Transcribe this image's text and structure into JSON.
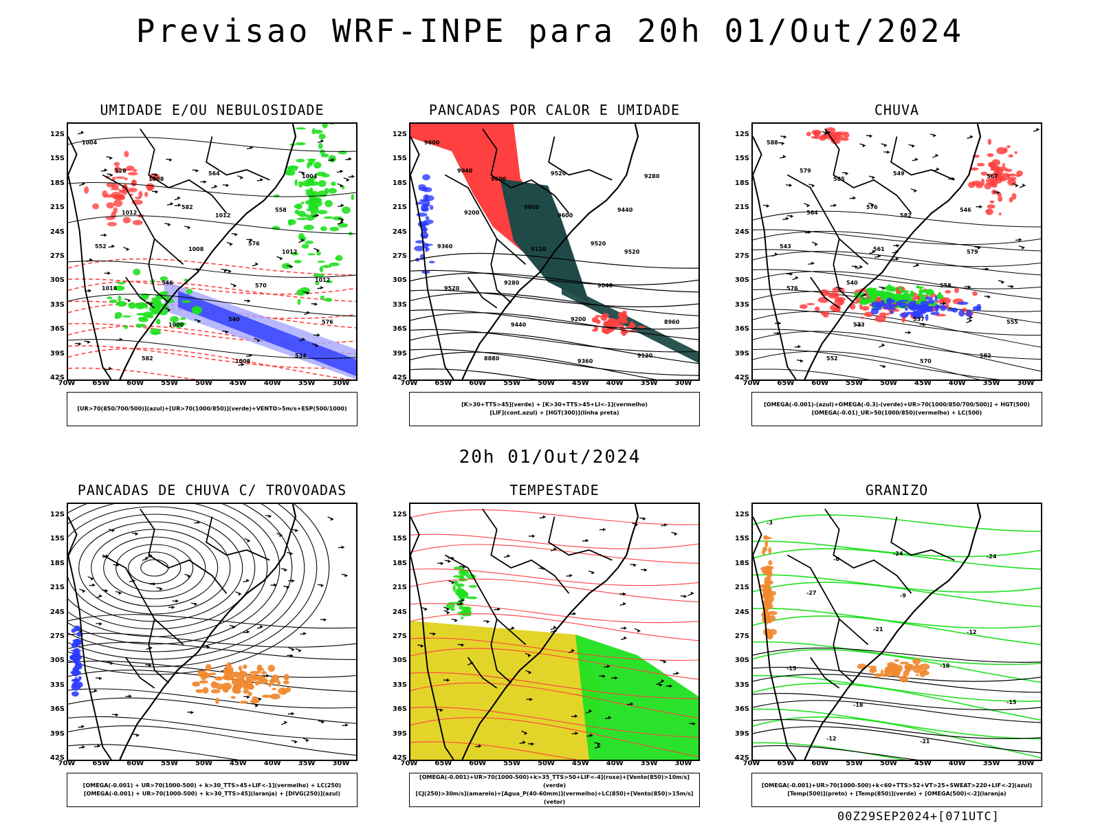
{
  "title": "Previsao WRF-INPE  para 20h 01/Out/2024",
  "mid_date": "20h 01/Out/2024",
  "footer": "00Z29SEP2024+[071UTC]",
  "lat_labels": [
    "12S",
    "15S",
    "18S",
    "21S",
    "24S",
    "27S",
    "30S",
    "33S",
    "36S",
    "39S",
    "42S"
  ],
  "lon_labels": [
    "70W",
    "65W",
    "60W",
    "55W",
    "50W",
    "45W",
    "40W",
    "35W",
    "30W"
  ],
  "panels": [
    {
      "title": "UMIDADE E/OU NEBULOSIDADE",
      "legend": [
        "[UR>70(850/700/500)](azul)+[UR>70(1000/850)](verde)+VENTO>5m/s+ESP(500/1000)"
      ]
    },
    {
      "title": "PANCADAS POR CALOR E UMIDADE",
      "legend": [
        "[K>30+TTS>45](verde)  +  [K>30+TTS>45+LI<-1](vermelho)",
        "[LIF](cont.azul)  +  [HGT(300)](linha preta)"
      ]
    },
    {
      "title": "CHUVA",
      "legend": [
        "[OMEGA(-0.001)-(azul)+OMEGA(-0.3)-(verde)+UR>70(1000/850/700/500)]  +  HGT(500)",
        "[OMEGA(-0.01)_UR>50(1000/850)(vermelho)  +  LC(500)"
      ]
    },
    {
      "title": "PANCADAS DE CHUVA C/ TROVOADAS",
      "legend": [
        "[OMEGA(-0.001)  +  UR>70(1000-500)  +  k>30_TTS>45+LIF<-1](vermelho)  +  LC(250)",
        "[OMEGA(-0.001)  +  UR>70(1000-500)  +  k>30_TTS>45](laranja)  +  [DIVG(250)](azul)"
      ]
    },
    {
      "title": "TEMPESTADE",
      "legend": [
        "[OMEGA(-0.001)+UR>70(1000-500)+k>35_TTS>50+LIF<-4](roxo)+[Vento(850)>10m/s](verde)",
        "[CJ(250)>30m/s](amarelo)+[Agua_P(40-60mm)](vermelho)+LC(850)+[Vento(850)>15m/s](vetor)"
      ]
    },
    {
      "title": "GRANIZO",
      "legend": [
        "[OMEGA(-0.001)+UR>70(1000-500)+k<60+TTS>52+VT>25+SWEAT>220+LIF<-2](azul)",
        "[Temp(500)](preto)  +  [Temp(850)](verde)  +  [OMEGA(500)<-2](laranja)"
      ]
    }
  ],
  "contour_labels": {
    "p1": [
      "1004",
      "1008",
      "1012",
      "1012",
      "1016",
      "1000",
      "1008",
      "1004",
      "1012",
      "1008",
      "570",
      "576",
      "582",
      "564",
      "558",
      "552",
      "546",
      "540",
      "534",
      "528",
      "582",
      "576",
      "1012"
    ],
    "p2": [
      "9600",
      "9600",
      "9600",
      "9520",
      "9520",
      "9440",
      "9360",
      "9280",
      "9200",
      "9120",
      "9040",
      "8960",
      "8880",
      "9520",
      "9440",
      "9360",
      "9280",
      "9200",
      "9120",
      "9040",
      "9600",
      "9520"
    ],
    "p3": [
      "588",
      "585",
      "582",
      "579",
      "576",
      "573",
      "570",
      "567",
      "564",
      "561",
      "558",
      "555",
      "552",
      "549",
      "546",
      "543",
      "540",
      "537",
      "582",
      "579",
      "576"
    ],
    "p6": [
      "-3",
      "-6",
      "-9",
      "-12",
      "-15",
      "-18",
      "-21",
      "-24",
      "-27",
      "-21",
      "-18",
      "-15",
      "-12",
      "-24"
    ]
  },
  "colors": {
    "blue": "#2b3bff",
    "green": "#20e020",
    "red": "#ff4040",
    "orange": "#f08a30",
    "yellow": "#e3d42a",
    "teal": "#1f4a48",
    "lightblue": "#a6a6ff"
  }
}
